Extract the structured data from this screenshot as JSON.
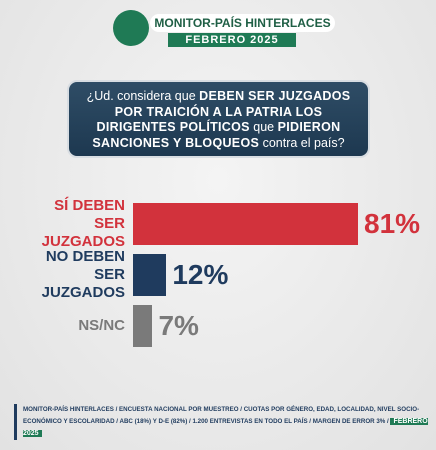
{
  "header": {
    "brand": "MONITOR-PAÍS HINTERLACES",
    "date": "FEBRERO 2025"
  },
  "question": [
    {
      "text": "¿Ud. considera que ",
      "bold": false
    },
    {
      "text": "DEBEN SER JUZGADOS POR TRAICIÓN A LA PATRIA LOS DIRIGENTES POLÍTICOS",
      "bold": true
    },
    {
      "text": " que ",
      "bold": false
    },
    {
      "text": "PIDIERON SANCIONES Y BLOQUEOS",
      "bold": true
    },
    {
      "text": " contra el país?",
      "bold": false
    }
  ],
  "chart_data": {
    "type": "bar",
    "orientation": "horizontal",
    "categories": [
      "SÍ DEBEN SER JUZGADOS",
      "NO DEBEN SER JUZGADOS",
      "NS/NC"
    ],
    "values": [
      81,
      12,
      7
    ],
    "value_labels": [
      "81%",
      "12%",
      "7%"
    ],
    "colors": [
      "#d2323c",
      "#1f3b5e",
      "#7a7a7a"
    ]
  },
  "footer": {
    "text": "MONITOR-PAÍS HINTERLACES / ENCUESTA NACIONAL POR MUESTREO / CUOTAS POR GÉNERO, EDAD, LOCALIDAD, NIVEL SOCIO-ECONÓMICO Y ESCOLARIDAD / ABC (18%) Y D-E (82%) / 1.200 ENTREVISTAS EN TODO EL PAÍS / MARGEN DE ERROR 3% /",
    "date": "FEBRERO 2025"
  }
}
